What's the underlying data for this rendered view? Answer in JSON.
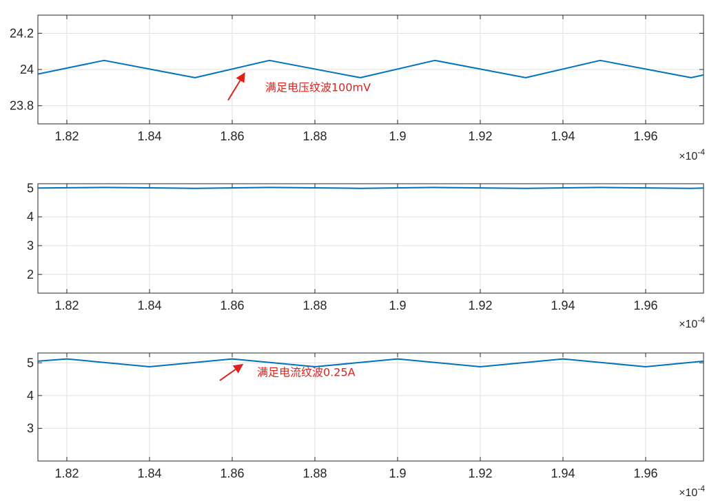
{
  "chart_data": [
    {
      "type": "line",
      "x_exponent_label": "×10",
      "x_exponent_power": "-4",
      "xlim": [
        1.813,
        1.974
      ],
      "ylim": [
        23.7,
        24.3
      ],
      "xticks": [
        "1.82",
        "1.84",
        "1.86",
        "1.88",
        "1.9",
        "1.92",
        "1.94",
        "1.96"
      ],
      "yticks": [
        "23.8",
        "24",
        "24.2"
      ],
      "grid": true,
      "line_color": "#0072BD",
      "series": [
        {
          "x": [
            1.813,
            1.829,
            1.851,
            1.869,
            1.891,
            1.909,
            1.931,
            1.949,
            1.971,
            1.974
          ],
          "values": [
            23.975,
            24.05,
            23.955,
            24.05,
            23.955,
            24.05,
            23.955,
            24.05,
            23.955,
            23.97
          ]
        }
      ],
      "annotation": {
        "text": "满足电压纹波100mV",
        "arrow_from": [
          1.859,
          23.83
        ],
        "arrow_to": [
          1.863,
          23.98
        ],
        "label_at": [
          1.868,
          23.88
        ]
      }
    },
    {
      "type": "line",
      "x_exponent_label": "×10",
      "x_exponent_power": "-4",
      "xlim": [
        1.813,
        1.974
      ],
      "ylim": [
        1.35,
        5.15
      ],
      "xticks": [
        "1.82",
        "1.84",
        "1.86",
        "1.88",
        "1.9",
        "1.92",
        "1.94",
        "1.96"
      ],
      "yticks": [
        "2",
        "3",
        "4",
        "5"
      ],
      "grid": true,
      "line_color": "#0072BD",
      "series": [
        {
          "x": [
            1.813,
            1.829,
            1.851,
            1.869,
            1.891,
            1.909,
            1.931,
            1.949,
            1.971,
            1.974
          ],
          "values": [
            5.0,
            5.02,
            4.99,
            5.02,
            4.99,
            5.02,
            4.99,
            5.02,
            4.99,
            5.0
          ]
        }
      ]
    },
    {
      "type": "line",
      "x_exponent_label": "×10",
      "x_exponent_power": "-4",
      "xlim": [
        1.813,
        1.974
      ],
      "ylim": [
        2.0,
        5.3
      ],
      "xticks": [
        "1.82",
        "1.84",
        "1.86",
        "1.88",
        "1.9",
        "1.92",
        "1.94",
        "1.96"
      ],
      "yticks": [
        "3",
        "4",
        "5"
      ],
      "grid": true,
      "line_color": "#0072BD",
      "series": [
        {
          "x": [
            1.813,
            1.82,
            1.84,
            1.86,
            1.88,
            1.9,
            1.92,
            1.94,
            1.96,
            1.974
          ],
          "values": [
            5.05,
            5.12,
            4.88,
            5.12,
            4.88,
            5.12,
            4.88,
            5.12,
            4.88,
            5.05
          ]
        }
      ],
      "annotation": {
        "text": "满足电流纹波0.25A",
        "arrow_from": [
          1.857,
          4.46
        ],
        "arrow_to": [
          1.8625,
          4.95
        ],
        "label_at": [
          1.866,
          4.6
        ]
      }
    }
  ]
}
